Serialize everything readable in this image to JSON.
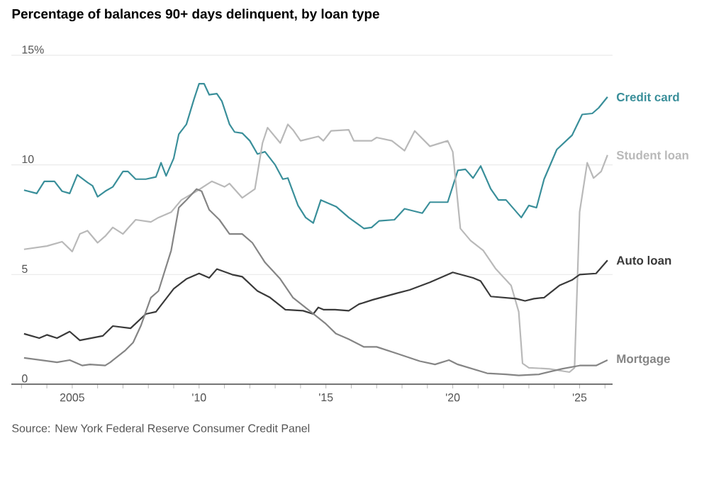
{
  "chart_data": {
    "type": "line",
    "title": "Percentage of balances 90+ days delinquent, by loan type",
    "annotations": [
      "Source: New York Federal Reserve Consumer Credit Panel"
    ],
    "grid": "y",
    "xlim": [
      2002.6,
      2026.3
    ],
    "xticks": [
      {
        "value": 2003,
        "label": null
      },
      {
        "value": 2004,
        "label": null
      },
      {
        "value": 2005,
        "label": "2005"
      },
      {
        "value": 2006,
        "label": null
      },
      {
        "value": 2007,
        "label": null
      },
      {
        "value": 2008,
        "label": null
      },
      {
        "value": 2009,
        "label": null
      },
      {
        "value": 2010,
        "label": "'10"
      },
      {
        "value": 2011,
        "label": null
      },
      {
        "value": 2012,
        "label": null
      },
      {
        "value": 2013,
        "label": null
      },
      {
        "value": 2014,
        "label": null
      },
      {
        "value": 2015,
        "label": "'15"
      },
      {
        "value": 2016,
        "label": null
      },
      {
        "value": 2017,
        "label": null
      },
      {
        "value": 2018,
        "label": null
      },
      {
        "value": 2019,
        "label": null
      },
      {
        "value": 2020,
        "label": "'20"
      },
      {
        "value": 2021,
        "label": null
      },
      {
        "value": 2022,
        "label": null
      },
      {
        "value": 2023,
        "label": null
      },
      {
        "value": 2024,
        "label": null
      },
      {
        "value": 2025,
        "label": "'25"
      },
      {
        "value": 2026,
        "label": null
      }
    ],
    "ylim": [
      0,
      15
    ],
    "yticks": [
      0,
      5,
      10,
      {
        "value": 15,
        "label": "15%"
      }
    ],
    "series": [
      {
        "name": "Credit card",
        "color": "#3a8f9a",
        "x": [
          2003.1,
          2003.6,
          2003.9,
          2004.3,
          2004.6,
          2004.9,
          2005.2,
          2005.6,
          2005.8,
          2006.0,
          2006.3,
          2006.6,
          2007.0,
          2007.2,
          2007.5,
          2007.9,
          2008.3,
          2008.5,
          2008.7,
          2009.0,
          2009.2,
          2009.5,
          2009.8,
          2010.0,
          2010.2,
          2010.4,
          2010.7,
          2010.9,
          2011.2,
          2011.4,
          2011.7,
          2012.0,
          2012.3,
          2012.6,
          2013.0,
          2013.3,
          2013.5,
          2013.9,
          2014.2,
          2014.5,
          2014.8,
          2015.0,
          2015.4,
          2015.9,
          2016.5,
          2016.8,
          2017.1,
          2017.7,
          2018.1,
          2018.8,
          2019.1,
          2019.8,
          2020.2,
          2020.5,
          2020.8,
          2021.1,
          2021.5,
          2021.8,
          2022.1,
          2022.7,
          2023.0,
          2023.3,
          2023.6,
          2024.1,
          2024.7,
          2025.1,
          2025.5,
          2025.75,
          2026.1
        ],
        "values": [
          8.85,
          8.7,
          9.25,
          9.25,
          8.8,
          8.7,
          9.55,
          9.2,
          9.05,
          8.55,
          8.8,
          9.0,
          9.7,
          9.7,
          9.35,
          9.35,
          9.45,
          10.1,
          9.5,
          10.3,
          11.4,
          11.85,
          13.0,
          13.7,
          13.7,
          13.2,
          13.25,
          12.9,
          11.85,
          11.5,
          11.45,
          11.1,
          10.5,
          10.6,
          10.0,
          9.35,
          9.4,
          8.15,
          7.6,
          7.35,
          8.4,
          8.3,
          8.1,
          7.6,
          7.1,
          7.15,
          7.45,
          7.5,
          8.0,
          7.8,
          8.3,
          8.3,
          9.75,
          9.8,
          9.4,
          9.95,
          8.9,
          8.4,
          8.4,
          7.6,
          8.15,
          8.05,
          9.35,
          10.7,
          11.35,
          12.3,
          12.35,
          12.6,
          13.1
        ]
      },
      {
        "name": "Student loan",
        "color": "#b9b9b9",
        "x": [
          2003.1,
          2003.7,
          2004.0,
          2004.6,
          2005.0,
          2005.3,
          2005.6,
          2006.0,
          2006.3,
          2006.6,
          2007.0,
          2007.5,
          2008.1,
          2008.4,
          2008.9,
          2009.3,
          2009.9,
          2010.5,
          2011.0,
          2011.2,
          2011.7,
          2012.2,
          2012.5,
          2012.7,
          2013.2,
          2013.5,
          2013.7,
          2014.0,
          2014.7,
          2014.9,
          2015.2,
          2015.9,
          2016.1,
          2016.8,
          2017.0,
          2017.6,
          2018.1,
          2018.5,
          2019.1,
          2019.8,
          2020.0,
          2020.3,
          2020.7,
          2021.2,
          2021.7,
          2022.3,
          2022.6,
          2022.75,
          2023.0,
          2023.8,
          2024.6,
          2024.8,
          2025.0,
          2025.3,
          2025.55,
          2025.85,
          2026.1
        ],
        "values": [
          6.15,
          6.25,
          6.3,
          6.5,
          6.05,
          6.85,
          7.0,
          6.45,
          6.75,
          7.15,
          6.85,
          7.5,
          7.4,
          7.6,
          7.85,
          8.4,
          8.8,
          9.25,
          9.0,
          9.15,
          8.5,
          8.9,
          11.0,
          11.7,
          11.0,
          11.85,
          11.6,
          11.1,
          11.3,
          11.1,
          11.55,
          11.6,
          11.1,
          11.1,
          11.25,
          11.1,
          10.65,
          11.55,
          10.85,
          11.1,
          10.6,
          7.1,
          6.55,
          6.1,
          5.25,
          4.5,
          3.3,
          0.95,
          0.75,
          0.7,
          0.55,
          0.75,
          7.85,
          10.1,
          9.4,
          9.7,
          10.45
        ]
      },
      {
        "name": "Auto loan",
        "color": "#3a3a3a",
        "x": [
          2003.1,
          2003.7,
          2004.0,
          2004.4,
          2004.9,
          2005.3,
          2006.2,
          2006.6,
          2007.3,
          2007.9,
          2008.3,
          2009.0,
          2009.5,
          2010.0,
          2010.4,
          2010.7,
          2011.3,
          2011.7,
          2012.3,
          2012.8,
          2013.4,
          2014.1,
          2014.5,
          2014.7,
          2014.9,
          2015.36,
          2015.9,
          2016.3,
          2016.85,
          2017.8,
          2018.3,
          2019.1,
          2020.0,
          2020.8,
          2021.1,
          2021.5,
          2022.5,
          2022.85,
          2023.2,
          2023.6,
          2024.2,
          2024.7,
          2025.0,
          2025.65,
          2026.1
        ],
        "values": [
          2.3,
          2.1,
          2.25,
          2.1,
          2.4,
          2.0,
          2.2,
          2.65,
          2.55,
          3.2,
          3.3,
          4.35,
          4.8,
          5.05,
          4.85,
          5.25,
          5.0,
          4.9,
          4.25,
          3.95,
          3.4,
          3.35,
          3.2,
          3.5,
          3.4,
          3.4,
          3.35,
          3.65,
          3.85,
          4.15,
          4.3,
          4.65,
          5.1,
          4.85,
          4.7,
          4.0,
          3.9,
          3.8,
          3.9,
          3.95,
          4.5,
          4.75,
          5.0,
          5.05,
          5.65
        ]
      },
      {
        "name": "Mortgage",
        "color": "#858585",
        "x": [
          2003.1,
          2004.4,
          2004.9,
          2005.4,
          2005.7,
          2006.3,
          2006.5,
          2007.1,
          2007.4,
          2007.7,
          2008.1,
          2008.4,
          2008.9,
          2009.2,
          2009.5,
          2009.9,
          2010.1,
          2010.4,
          2010.8,
          2011.2,
          2011.7,
          2012.1,
          2012.6,
          2013.2,
          2013.7,
          2014.3,
          2015.0,
          2015.4,
          2015.9,
          2016.5,
          2017.0,
          2017.8,
          2018.7,
          2019.3,
          2019.85,
          2020.2,
          2021.35,
          2022.1,
          2022.6,
          2023.4,
          2024.3,
          2025.0,
          2025.65,
          2026.1
        ],
        "values": [
          1.2,
          1.0,
          1.1,
          0.85,
          0.9,
          0.85,
          1.0,
          1.55,
          1.9,
          2.65,
          3.95,
          4.25,
          6.1,
          8.05,
          8.4,
          8.9,
          8.8,
          7.95,
          7.5,
          6.85,
          6.85,
          6.45,
          5.55,
          4.8,
          3.95,
          3.4,
          2.75,
          2.3,
          2.05,
          1.7,
          1.7,
          1.4,
          1.05,
          0.9,
          1.1,
          0.9,
          0.5,
          0.45,
          0.4,
          0.45,
          0.7,
          0.85,
          0.85,
          1.1
        ]
      }
    ]
  }
}
